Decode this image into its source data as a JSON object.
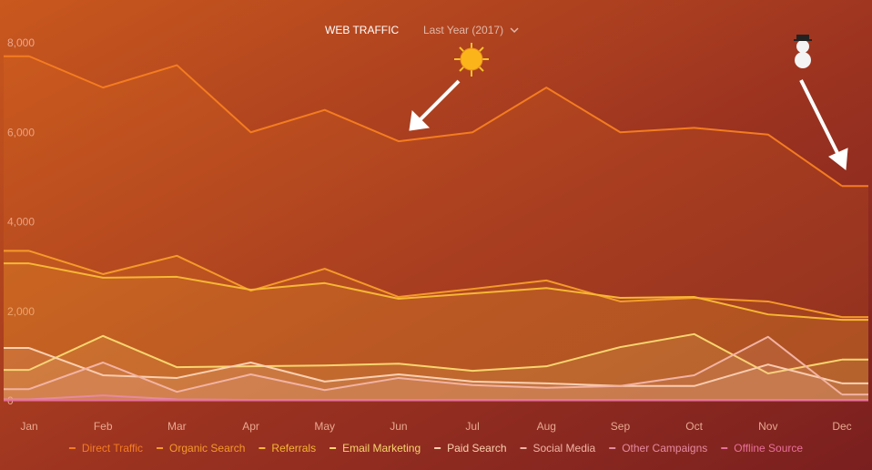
{
  "chart_data": {
    "type": "line",
    "area": true,
    "title": "WEB TRAFFIC",
    "subtitle": "Last Year (2017)",
    "categories": [
      "Jan",
      "Feb",
      "Mar",
      "Apr",
      "May",
      "Jun",
      "Jul",
      "Aug",
      "Sep",
      "Oct",
      "Nov",
      "Dec"
    ],
    "ylim": [
      0,
      8000
    ],
    "yticks": [
      {
        "value": 0,
        "label": "0"
      },
      {
        "value": 2000,
        "label": "2,000"
      },
      {
        "value": 4000,
        "label": "4,000"
      },
      {
        "value": 6000,
        "label": "6,000"
      },
      {
        "value": 8000,
        "label": "8,000"
      }
    ],
    "series": [
      {
        "name": "Direct Traffic",
        "color": "#f47c20",
        "values": [
          7700,
          7000,
          7500,
          6000,
          6500,
          5800,
          6000,
          7000,
          6000,
          6100,
          5950,
          4800
        ]
      },
      {
        "name": "Organic Search",
        "color": "#f59a2a",
        "values": [
          3350,
          2830,
          3240,
          2460,
          2950,
          2320,
          2500,
          2690,
          2220,
          2300,
          2220,
          1870
        ]
      },
      {
        "name": "Referrals",
        "color": "#f7b733",
        "values": [
          3070,
          2750,
          2770,
          2480,
          2630,
          2280,
          2400,
          2520,
          2300,
          2320,
          1930,
          1810
        ]
      },
      {
        "name": "Email Marketing",
        "color": "#f9d56e",
        "values": [
          690,
          1450,
          750,
          770,
          790,
          830,
          670,
          770,
          1200,
          1490,
          610,
          920
        ]
      },
      {
        "name": "Paid Search",
        "color": "#fbd0b0",
        "values": [
          1180,
          570,
          510,
          855,
          430,
          590,
          430,
          390,
          330,
          330,
          810,
          390
        ]
      },
      {
        "name": "Social Media",
        "color": "#f2b3a3",
        "values": [
          260,
          855,
          200,
          590,
          240,
          510,
          350,
          290,
          330,
          570,
          1430,
          140
        ]
      },
      {
        "name": "Other Campaigns",
        "color": "#e58aa0",
        "values": [
          30,
          120,
          30,
          20,
          20,
          20,
          20,
          20,
          20,
          20,
          20,
          20
        ]
      },
      {
        "name": "Offline Source",
        "color": "#e8709a",
        "values": [
          10,
          10,
          10,
          10,
          10,
          10,
          10,
          10,
          10,
          10,
          10,
          10
        ]
      }
    ]
  }
}
